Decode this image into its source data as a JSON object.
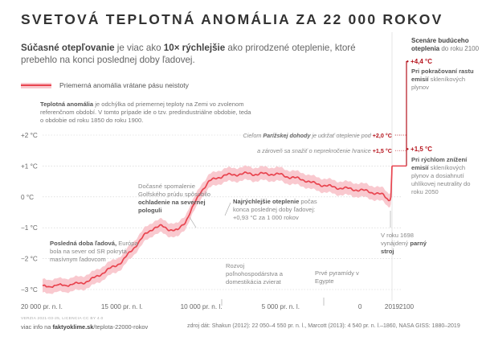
{
  "title": "SVETOVÁ TEPLOTNÁ ANOMÁLIA ZA 22 000 ROKOV",
  "subtitle": {
    "part1": "Súčasné otepľovanie",
    "part2": " je viac ako ",
    "part3": "10× rýchlejšie",
    "part4": " ako prirodzené oteplenie, ktoré prebehlo na konci poslednej doby ľadovej."
  },
  "legend": {
    "label": "Priemerná anomália vrátane pásu neistoty"
  },
  "info": {
    "bold": "Teplotná anomália",
    "text": " je odchýlka od priemernej teploty na Zemi vo zvolenom referenčnom období. V tomto prípade ide o tzv. predindustriálne obdobie, teda o obdobie od roku 1850 do roku 1900."
  },
  "annotations": {
    "ice_age_bold": "Posledná doba ľadová,",
    "ice_age_text": " Európa bola na sever od SR pokrytá masívnym ľadovcom",
    "cooling_text": "Dočasné spomalenie Golfského prúdu spôsobilo ",
    "cooling_bold": "ochladenie na severnej pologuli",
    "fastest_bold": "Najrýchlejšie oteplenie",
    "fastest_text": " počas konca poslednej doby ľadovej: +0,93 °C za 1 000 rokov",
    "farming": "Rozvoj poľnohospodárstva a domestikácia zvierat",
    "pyramids": "Prvé pyramídy v Egypte",
    "steam_text": "V roku 1698 vynájdený ",
    "steam_bold": "parný stroj",
    "paris_text1": "Cieľom ",
    "paris_bold": "Parížskej dohody",
    "paris_text2": " je udržať oteplenie pod",
    "paris_val1": "+2,0 °C",
    "paris_text3": "a zároveň sa snažiť o neprekročenie hranice",
    "paris_val2": "+1,5 °C"
  },
  "scenarios": {
    "head_bold": "Scenáre budúceho",
    "head_bold2": "oteplenia",
    "head_text": " do roku 2100",
    "high_val": "+4,4 °C",
    "high_bold": "Pri pokračovaní rastu emisií",
    "high_text": " skleníkových plynov",
    "low_val": "+1,5 °C",
    "low_bold": "Pri rýchlom znížení emisií",
    "low_text": " skleníkových plynov a dosiahnutí uhlíkovej neutrality do roku 2050"
  },
  "footer": {
    "version": "VERZIA 2021-03-25, LICENCIA CC BY 4.0",
    "link_prefix": "viac info na ",
    "link_bold": "faktyoklime.sk",
    "link_suffix": "/teplota-22000-rokov",
    "source": "zdroj dát: Shakun (2012): 22 050–4 550 pr. n. l., Marcott (2013): 4 540 pr. n. l.–1860, NASA GISS: 1880–2019"
  },
  "colors": {
    "line": "#e8444f",
    "band": "#f9c9cf",
    "accent": "#b5121b"
  },
  "chart_data": {
    "type": "area",
    "title": "SVETOVÁ TEPLOTNÁ ANOMÁLIA ZA 22 000 ROKOV",
    "xlabel": "",
    "ylabel": "",
    "x_unit": "year (negative = pr. n. l.)",
    "ylim": [
      -3.2,
      2.8
    ],
    "y_ticks": [
      2,
      1,
      0,
      -1,
      -2,
      -3
    ],
    "y_tick_labels": [
      "+2 °C",
      "+1 °C",
      "0 °C",
      "−1 °C",
      "−2 °C",
      "−3 °C"
    ],
    "x_ticks": [
      -20000,
      -15000,
      -10000,
      -5000,
      0,
      2019,
      2100
    ],
    "x_tick_labels": [
      "20 000 pr. n. l.",
      "15 000 pr. n. l.",
      "10 000 pr. n. l.",
      "5 000 pr. n. l.",
      "0",
      "2019",
      "2100"
    ],
    "grid": true,
    "series": [
      {
        "name": "Priemerná anomália vrátane pásu neistoty",
        "x": [
          -20000,
          -19000,
          -18000,
          -17500,
          -17000,
          -16500,
          -16000,
          -15500,
          -15000,
          -14500,
          -14000,
          -13500,
          -13000,
          -12500,
          -12000,
          -11500,
          -11000,
          -10500,
          -10000,
          -9500,
          -9000,
          -8500,
          -8000,
          -7500,
          -7000,
          -6500,
          -6000,
          -5500,
          -5000,
          -4500,
          -4000,
          -3500,
          -3000,
          -2500,
          -2000,
          -1500,
          -1000,
          -500,
          0,
          500,
          1000,
          1500,
          1800,
          1900,
          1950,
          2019
        ],
        "y": [
          -2.9,
          -2.87,
          -2.83,
          -2.78,
          -2.7,
          -2.55,
          -2.4,
          -2.25,
          -2.1,
          -1.8,
          -1.5,
          -1.2,
          -1.0,
          -0.95,
          -1.05,
          -1.1,
          -0.8,
          -0.3,
          0.2,
          0.5,
          0.62,
          0.7,
          0.72,
          0.74,
          0.76,
          0.73,
          0.75,
          0.74,
          0.72,
          0.65,
          0.6,
          0.55,
          0.45,
          0.4,
          0.35,
          0.3,
          0.28,
          0.25,
          0.22,
          0.18,
          0.12,
          0.05,
          -0.1,
          -0.05,
          0.05,
          1.0
        ],
        "band": 0.22
      }
    ],
    "scenarios": [
      {
        "name": "Pri pokračovaní rastu emisií",
        "year": 2100,
        "value": 4.4
      },
      {
        "name": "Pri rýchlom znížení emisií",
        "year": 2100,
        "value": 1.5
      }
    ],
    "thresholds": [
      2.0,
      1.5
    ]
  }
}
